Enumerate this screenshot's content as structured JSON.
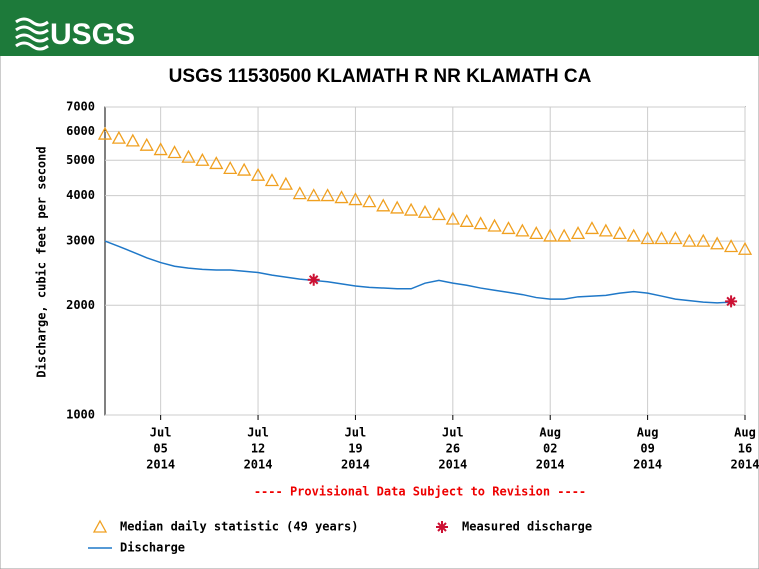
{
  "header": {
    "logo": "USGS"
  },
  "chart_data": {
    "type": "line",
    "title": "USGS 11530500 KLAMATH R NR KLAMATH CA",
    "ylabel": "Discharge, cubic feet per second",
    "note": "---- Provisional Data Subject to Revision ----",
    "log_scale": true,
    "grid": true,
    "xlim": [
      "2014-07-01",
      "2014-08-16"
    ],
    "xticks": [
      {
        "value": "2014-07-05",
        "label": [
          "Jul",
          "05",
          "2014"
        ]
      },
      {
        "value": "2014-07-12",
        "label": [
          "Jul",
          "12",
          "2014"
        ]
      },
      {
        "value": "2014-07-19",
        "label": [
          "Jul",
          "19",
          "2014"
        ]
      },
      {
        "value": "2014-07-26",
        "label": [
          "Jul",
          "26",
          "2014"
        ]
      },
      {
        "value": "2014-08-02",
        "label": [
          "Aug",
          "02",
          "2014"
        ]
      },
      {
        "value": "2014-08-09",
        "label": [
          "Aug",
          "09",
          "2014"
        ]
      },
      {
        "value": "2014-08-16",
        "label": [
          "Aug",
          "16",
          "2014"
        ]
      }
    ],
    "ylim": [
      1000,
      7000
    ],
    "yticks": [
      1000,
      2000,
      3000,
      4000,
      5000,
      6000,
      7000
    ],
    "series": [
      {
        "name": "Median daily statistic (49 years)",
        "color": "#f0a020",
        "marker": "triangle",
        "x": [
          "2014-07-01",
          "2014-07-02",
          "2014-07-03",
          "2014-07-04",
          "2014-07-05",
          "2014-07-06",
          "2014-07-07",
          "2014-07-08",
          "2014-07-09",
          "2014-07-10",
          "2014-07-11",
          "2014-07-12",
          "2014-07-13",
          "2014-07-14",
          "2014-07-15",
          "2014-07-16",
          "2014-07-17",
          "2014-07-18",
          "2014-07-19",
          "2014-07-20",
          "2014-07-21",
          "2014-07-22",
          "2014-07-23",
          "2014-07-24",
          "2014-07-25",
          "2014-07-26",
          "2014-07-27",
          "2014-07-28",
          "2014-07-29",
          "2014-07-30",
          "2014-07-31",
          "2014-08-01",
          "2014-08-02",
          "2014-08-03",
          "2014-08-04",
          "2014-08-05",
          "2014-08-06",
          "2014-08-07",
          "2014-08-08",
          "2014-08-09",
          "2014-08-10",
          "2014-08-11",
          "2014-08-12",
          "2014-08-13",
          "2014-08-14",
          "2014-08-15",
          "2014-08-16"
        ],
        "values": [
          5900,
          5750,
          5650,
          5500,
          5350,
          5250,
          5100,
          5000,
          4900,
          4750,
          4700,
          4550,
          4400,
          4300,
          4050,
          4000,
          4000,
          3950,
          3900,
          3850,
          3750,
          3700,
          3650,
          3600,
          3550,
          3450,
          3400,
          3350,
          3300,
          3250,
          3200,
          3150,
          3100,
          3100,
          3150,
          3250,
          3200,
          3150,
          3100,
          3050,
          3050,
          3050,
          3000,
          3000,
          2950,
          2900,
          2850
        ]
      },
      {
        "name": "Measured discharge",
        "color": "#cc1133",
        "marker": "asterisk",
        "x": [
          "2014-07-16",
          "2014-08-15"
        ],
        "values": [
          2350,
          2050
        ]
      },
      {
        "name": "Discharge",
        "color": "#1f78c8",
        "marker": "line",
        "x": [
          "2014-07-01",
          "2014-07-02",
          "2014-07-03",
          "2014-07-04",
          "2014-07-05",
          "2014-07-06",
          "2014-07-07",
          "2014-07-08",
          "2014-07-09",
          "2014-07-10",
          "2014-07-11",
          "2014-07-12",
          "2014-07-13",
          "2014-07-14",
          "2014-07-15",
          "2014-07-16",
          "2014-07-17",
          "2014-07-18",
          "2014-07-19",
          "2014-07-20",
          "2014-07-21",
          "2014-07-22",
          "2014-07-23",
          "2014-07-24",
          "2014-07-25",
          "2014-07-26",
          "2014-07-27",
          "2014-07-28",
          "2014-07-29",
          "2014-07-30",
          "2014-07-31",
          "2014-08-01",
          "2014-08-02",
          "2014-08-03",
          "2014-08-04",
          "2014-08-05",
          "2014-08-06",
          "2014-08-07",
          "2014-08-08",
          "2014-08-09",
          "2014-08-10",
          "2014-08-11",
          "2014-08-12",
          "2014-08-13",
          "2014-08-14",
          "2014-08-15"
        ],
        "values": [
          3000,
          2900,
          2800,
          2700,
          2620,
          2560,
          2530,
          2510,
          2500,
          2500,
          2480,
          2460,
          2420,
          2390,
          2360,
          2340,
          2320,
          2290,
          2260,
          2240,
          2230,
          2220,
          2220,
          2300,
          2340,
          2300,
          2270,
          2230,
          2200,
          2170,
          2140,
          2100,
          2080,
          2080,
          2110,
          2120,
          2130,
          2160,
          2180,
          2160,
          2120,
          2080,
          2060,
          2040,
          2030,
          2040
        ]
      }
    ]
  }
}
